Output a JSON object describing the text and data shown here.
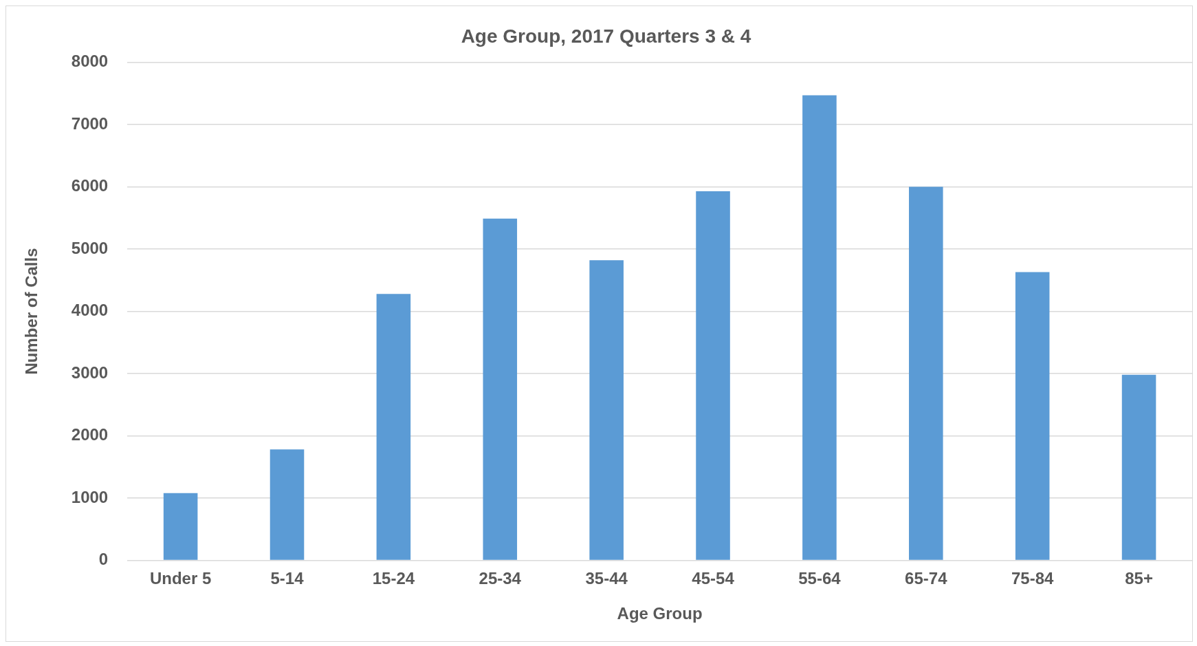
{
  "chart_data": {
    "type": "bar",
    "title": "Age Group, 2017 Quarters 3 & 4",
    "xlabel": "Age Group",
    "ylabel": "Number of Calls",
    "categories": [
      "Under 5",
      "5-14",
      "15-24",
      "25-34",
      "35-44",
      "45-54",
      "55-64",
      "65-74",
      "75-84",
      "85+"
    ],
    "values": [
      1080,
      1780,
      4280,
      5490,
      4820,
      5930,
      7470,
      6000,
      4630,
      2980
    ],
    "color": "#5b9bd5",
    "ylim": [
      0,
      8000
    ],
    "yticks": [
      0,
      1000,
      2000,
      3000,
      4000,
      5000,
      6000,
      7000,
      8000
    ],
    "grid": "y",
    "legend": false
  }
}
